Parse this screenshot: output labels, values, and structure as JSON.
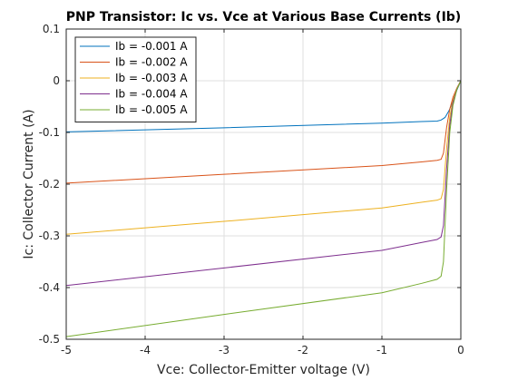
{
  "chart_data": {
    "type": "line",
    "title": "PNP Transistor: Ic vs. Vce at Various Base Currents (Ib)",
    "xlabel": "Vce: Collector-Emitter voltage (V)",
    "ylabel": "Ic: Collector Current (A)",
    "xlim": [
      -5,
      0
    ],
    "ylim": [
      -0.5,
      0.1
    ],
    "xticks": [
      -5,
      -4,
      -3,
      -2,
      -1,
      0
    ],
    "xtick_labels": [
      "-5",
      "-4",
      "-3",
      "-2",
      "-1",
      "0"
    ],
    "yticks": [
      -0.5,
      -0.4,
      -0.3,
      -0.2,
      -0.1,
      0,
      0.1
    ],
    "ytick_labels": [
      "-0.5",
      "-0.4",
      "-0.3",
      "-0.2",
      "-0.1",
      "0",
      "0.1"
    ],
    "grid": true,
    "legend_position": "top-left",
    "series": [
      {
        "name": "Ib = -0.001 A",
        "color": "#0072bd",
        "x": [
          -5,
          -3,
          -1,
          -0.5,
          -0.3,
          -0.25,
          -0.2,
          -0.15,
          -0.1,
          -0.05,
          0
        ],
        "y": [
          -0.099,
          -0.091,
          -0.082,
          -0.079,
          -0.078,
          -0.076,
          -0.071,
          -0.058,
          -0.04,
          -0.018,
          0
        ]
      },
      {
        "name": "Ib = -0.002 A",
        "color": "#d95319",
        "x": [
          -5,
          -3,
          -1,
          -0.5,
          -0.3,
          -0.25,
          -0.22,
          -0.18,
          -0.14,
          -0.1,
          -0.05,
          0
        ],
        "y": [
          -0.198,
          -0.181,
          -0.164,
          -0.157,
          -0.154,
          -0.152,
          -0.14,
          -0.09,
          -0.055,
          -0.032,
          -0.014,
          0
        ]
      },
      {
        "name": "Ib = -0.003 A",
        "color": "#edb120",
        "x": [
          -5,
          -3,
          -1,
          -0.5,
          -0.3,
          -0.25,
          -0.22,
          -0.18,
          -0.14,
          -0.1,
          -0.05,
          0
        ],
        "y": [
          -0.297,
          -0.272,
          -0.246,
          -0.235,
          -0.231,
          -0.228,
          -0.21,
          -0.13,
          -0.07,
          -0.038,
          -0.015,
          0
        ]
      },
      {
        "name": "Ib = -0.004 A",
        "color": "#7e2f8e",
        "x": [
          -5,
          -3,
          -1,
          -0.5,
          -0.3,
          -0.25,
          -0.22,
          -0.18,
          -0.14,
          -0.1,
          -0.05,
          0
        ],
        "y": [
          -0.396,
          -0.362,
          -0.328,
          -0.313,
          -0.307,
          -0.302,
          -0.28,
          -0.17,
          -0.085,
          -0.042,
          -0.016,
          0
        ]
      },
      {
        "name": "Ib = -0.005 A",
        "color": "#77ac30",
        "x": [
          -5,
          -3,
          -1,
          -0.5,
          -0.3,
          -0.25,
          -0.22,
          -0.18,
          -0.14,
          -0.1,
          -0.05,
          0
        ],
        "y": [
          -0.495,
          -0.452,
          -0.41,
          -0.392,
          -0.384,
          -0.378,
          -0.35,
          -0.21,
          -0.1,
          -0.048,
          -0.017,
          0
        ]
      }
    ]
  }
}
